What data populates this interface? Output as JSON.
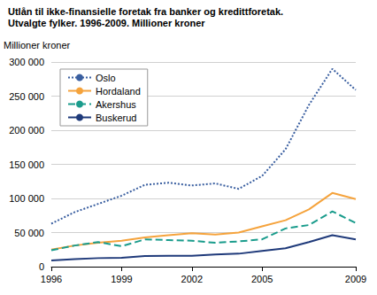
{
  "chart_data": {
    "type": "line",
    "title": "Utlån til ikke-finansielle foretak fra banker og kredittforetak.",
    "subtitle": "Utvalgte fylker. 1996-2009. Millioner kroner",
    "y_label": "Millioner kroner",
    "x": [
      1996,
      1997,
      1998,
      1999,
      2000,
      2001,
      2002,
      2003,
      2004,
      2005,
      2006,
      2007,
      2008,
      2009
    ],
    "series": [
      {
        "name": "Oslo",
        "color": "#3a5fa0",
        "line_style": "dotted",
        "values": [
          63000,
          80000,
          92000,
          104000,
          120000,
          123000,
          119000,
          122000,
          114000,
          133000,
          172000,
          237000,
          290000,
          259000
        ]
      },
      {
        "name": "Hordaland",
        "color": "#f5a33c",
        "line_style": "solid",
        "values": [
          25000,
          31000,
          35000,
          38000,
          43000,
          46000,
          49000,
          47000,
          50000,
          59000,
          68000,
          84000,
          108000,
          99000
        ]
      },
      {
        "name": "Akershus",
        "color": "#1a9c8c",
        "line_style": "dashed",
        "values": [
          24000,
          31000,
          36000,
          30000,
          40000,
          39000,
          38000,
          35000,
          37000,
          40000,
          56000,
          61000,
          81000,
          64000
        ]
      },
      {
        "name": "Buskerud",
        "color": "#1f3a7a",
        "line_style": "solid",
        "values": [
          9000,
          11000,
          12500,
          13000,
          15500,
          16000,
          16000,
          18000,
          19000,
          23000,
          27000,
          36000,
          46000,
          40000
        ]
      }
    ],
    "xlim": [
      1996,
      2009
    ],
    "xticks": [
      1996,
      1999,
      2002,
      2005,
      2009
    ],
    "ylim": [
      0,
      300000
    ],
    "yticks": [
      0,
      {
        "value": 50000,
        "label": "50 000"
      },
      {
        "value": 100000,
        "label": "100 000"
      },
      {
        "value": 150000,
        "label": "150 000"
      },
      {
        "value": 200000,
        "label": "200 000"
      },
      {
        "value": 250000,
        "label": "250 000"
      },
      {
        "value": 300000,
        "label": "300 000"
      }
    ],
    "grid": true,
    "legend": "upper left"
  }
}
